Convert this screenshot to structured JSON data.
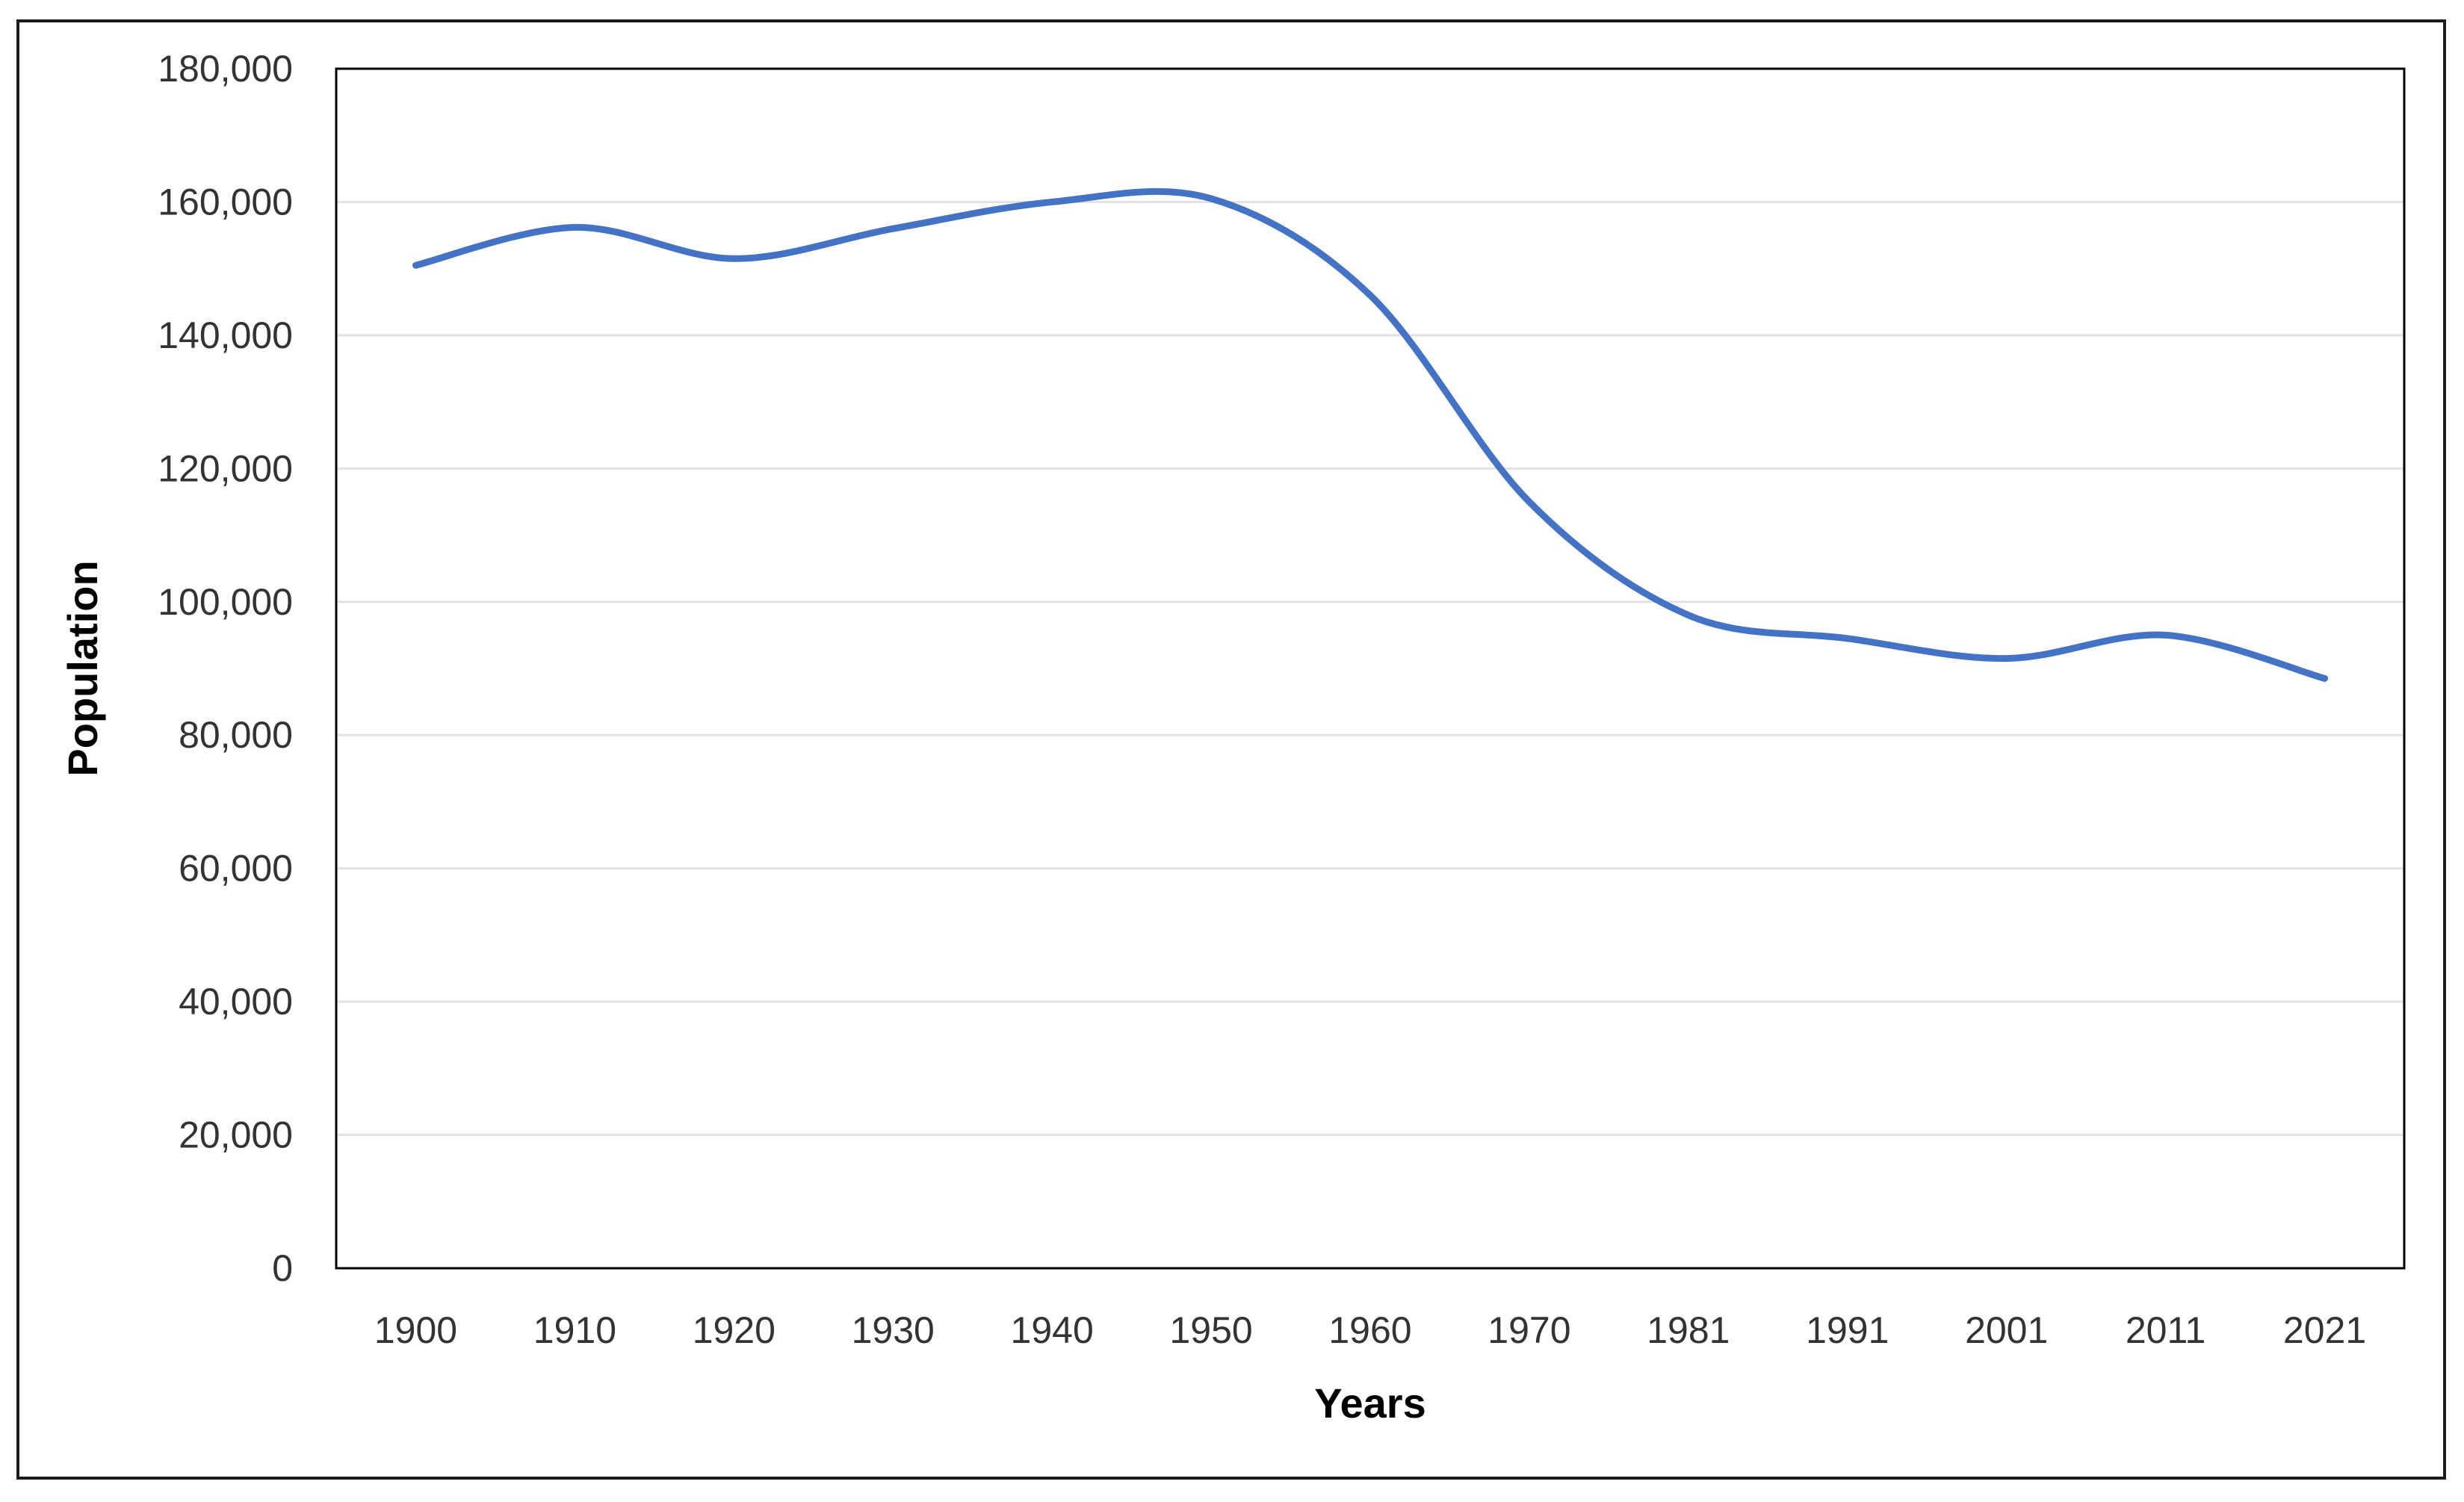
{
  "chart_data": {
    "type": "line",
    "title": "",
    "xlabel": "Years",
    "ylabel": "Population",
    "categories": [
      "1900",
      "1910",
      "1920",
      "1930",
      "1940",
      "1950",
      "1960",
      "1970",
      "1981",
      "1991",
      "2001",
      "2011",
      "2021"
    ],
    "series": [
      {
        "values": [
          150500,
          156200,
          151500,
          156000,
          160000,
          160500,
          146000,
          115000,
          98000,
          94500,
          91500,
          95000,
          88500
        ]
      }
    ],
    "yticks": [
      "0",
      "20,000",
      "40,000",
      "60,000",
      "80,000",
      "100,000",
      "120,000",
      "140,000",
      "160,000",
      "180,000"
    ],
    "ylim": [
      0,
      180000
    ],
    "smooth": true,
    "grid": true,
    "legend": "none",
    "colors": {
      "line": "#4472c4",
      "grid": "#e3e3e3",
      "plot_border": "#000000"
    }
  }
}
